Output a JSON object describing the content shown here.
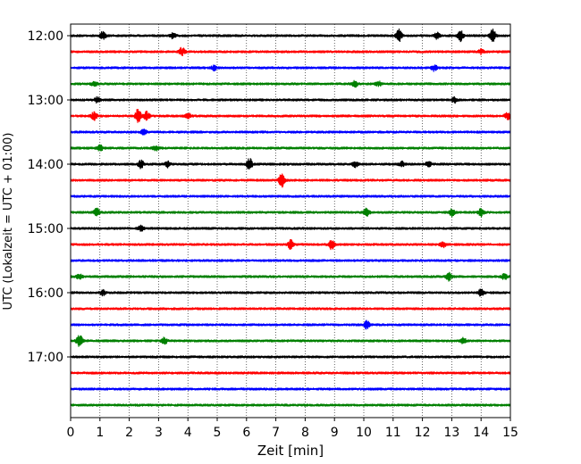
{
  "chart_data": {
    "type": "line",
    "xlabel": "Zeit  [min]",
    "ylabel": "UTC (Lokalzeit = UTC + 01:00)",
    "xlim": [
      0,
      15
    ],
    "x_ticks": [
      0,
      1,
      2,
      3,
      4,
      5,
      6,
      7,
      8,
      9,
      10,
      11,
      12,
      13,
      14,
      15
    ],
    "y_ticks": [
      "12:00",
      "13:00",
      "14:00",
      "15:00",
      "16:00",
      "17:00"
    ],
    "grid": "vertical-dotted",
    "trace_interval_minutes": 15,
    "colors": [
      "#000000",
      "#ff0000",
      "#0000ff",
      "#008000"
    ],
    "series": [
      {
        "time": "12:00",
        "color": "#000000",
        "events": [
          [
            1.1,
            2.0
          ],
          [
            3.5,
            1.4
          ],
          [
            11.2,
            3.0
          ],
          [
            12.5,
            1.6
          ],
          [
            13.3,
            2.5
          ],
          [
            14.4,
            3.5
          ]
        ]
      },
      {
        "time": "12:15",
        "color": "#ff0000",
        "events": [
          [
            3.8,
            2.0
          ],
          [
            14.0,
            1.2
          ]
        ]
      },
      {
        "time": "12:30",
        "color": "#0000ff",
        "events": [
          [
            4.9,
            1.5
          ],
          [
            12.4,
            1.6
          ]
        ]
      },
      {
        "time": "12:45",
        "color": "#008000",
        "events": [
          [
            0.8,
            1.3
          ],
          [
            9.7,
            1.4
          ],
          [
            10.5,
            1.2
          ]
        ]
      },
      {
        "time": "13:00",
        "color": "#000000",
        "events": [
          [
            0.9,
            1.2
          ],
          [
            13.1,
            1.3
          ]
        ]
      },
      {
        "time": "13:15",
        "color": "#ff0000",
        "events": [
          [
            0.8,
            2.0
          ],
          [
            2.3,
            3.8
          ],
          [
            2.6,
            2.2
          ],
          [
            4.0,
            1.4
          ],
          [
            14.9,
            2.0
          ]
        ]
      },
      {
        "time": "13:30",
        "color": "#0000ff",
        "events": [
          [
            2.5,
            1.2
          ]
        ]
      },
      {
        "time": "13:45",
        "color": "#008000",
        "events": [
          [
            1.0,
            1.6
          ],
          [
            2.9,
            1.2
          ]
        ]
      },
      {
        "time": "14:00",
        "color": "#000000",
        "events": [
          [
            2.4,
            2.0
          ],
          [
            3.3,
            1.5
          ],
          [
            6.1,
            3.0
          ],
          [
            9.7,
            1.3
          ],
          [
            11.3,
            1.2
          ],
          [
            12.2,
            1.3
          ]
        ]
      },
      {
        "time": "14:15",
        "color": "#ff0000",
        "events": [
          [
            7.2,
            3.8
          ]
        ]
      },
      {
        "time": "14:30",
        "color": "#0000ff",
        "events": []
      },
      {
        "time": "14:45",
        "color": "#008000",
        "events": [
          [
            0.9,
            2.2
          ],
          [
            10.1,
            2.0
          ],
          [
            13.0,
            1.8
          ],
          [
            14.0,
            2.0
          ]
        ]
      },
      {
        "time": "15:00",
        "color": "#000000",
        "events": [
          [
            2.4,
            1.2
          ]
        ]
      },
      {
        "time": "15:15",
        "color": "#ff0000",
        "events": [
          [
            7.5,
            2.2
          ],
          [
            8.9,
            2.4
          ],
          [
            12.7,
            1.4
          ]
        ]
      },
      {
        "time": "15:30",
        "color": "#0000ff",
        "events": []
      },
      {
        "time": "15:45",
        "color": "#008000",
        "events": [
          [
            0.3,
            1.2
          ],
          [
            12.9,
            2.0
          ],
          [
            14.8,
            1.4
          ]
        ]
      },
      {
        "time": "16:00",
        "color": "#000000",
        "events": [
          [
            1.1,
            1.2
          ],
          [
            14.0,
            1.6
          ]
        ]
      },
      {
        "time": "16:15",
        "color": "#ff0000",
        "events": []
      },
      {
        "time": "16:30",
        "color": "#0000ff",
        "events": [
          [
            10.1,
            2.0
          ]
        ]
      },
      {
        "time": "16:45",
        "color": "#008000",
        "events": [
          [
            0.3,
            3.6
          ],
          [
            3.2,
            1.6
          ],
          [
            13.4,
            1.3
          ]
        ]
      },
      {
        "time": "17:00",
        "color": "#000000",
        "events": []
      },
      {
        "time": "17:15",
        "color": "#ff0000",
        "events": []
      },
      {
        "time": "17:30",
        "color": "#0000ff",
        "events": []
      },
      {
        "time": "17:45",
        "color": "#008000",
        "events": []
      }
    ]
  }
}
